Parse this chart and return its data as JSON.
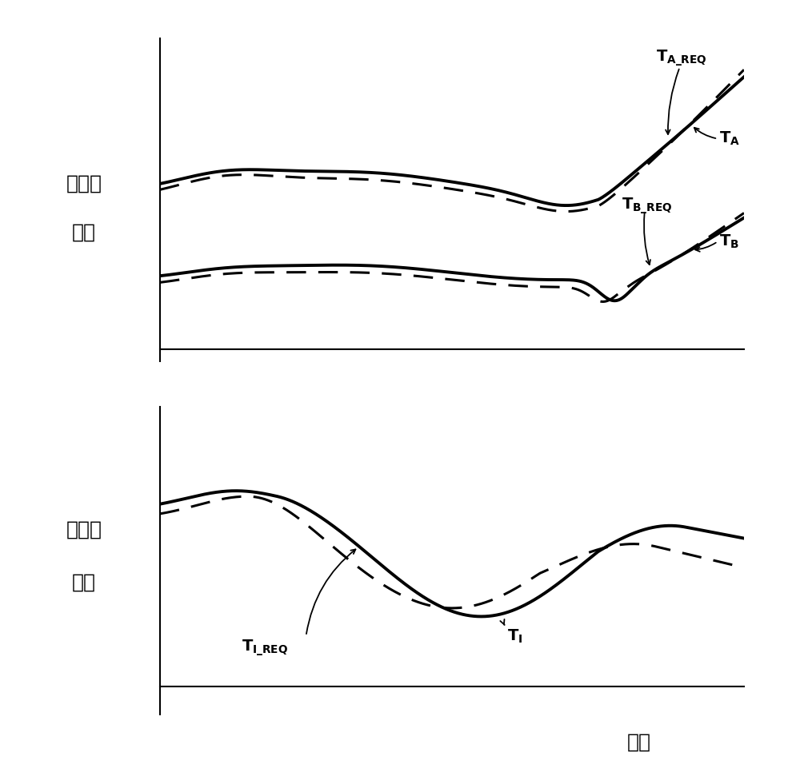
{
  "background_color": "#ffffff",
  "top_ylabel_line1": "电动机",
  "top_ylabel_line2": "扭矩",
  "bottom_ylabel_line1": "发动机",
  "bottom_ylabel_line2": "扭矩",
  "xlabel": "时间",
  "solid_color": "#000000",
  "dashed_color": "#000000",
  "linewidth_solid": 2.8,
  "linewidth_dashed": 2.2,
  "dash_pattern": [
    8,
    5
  ]
}
